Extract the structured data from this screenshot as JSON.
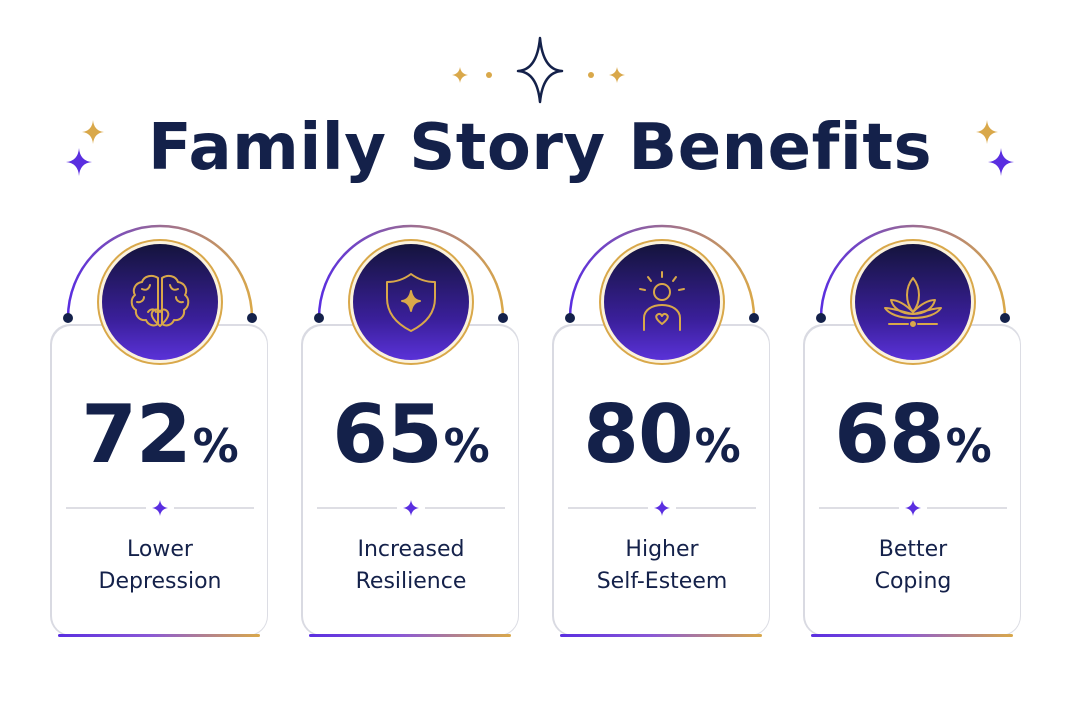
{
  "title": "Family Story Benefits",
  "colors": {
    "navy": "#14214a",
    "purple": "#5a2ee0",
    "gold": "#d9a84a"
  },
  "cards": [
    {
      "value": "72",
      "unit": "%",
      "label": "Lower\nDepression",
      "icon": "brain-heart-icon"
    },
    {
      "value": "65",
      "unit": "%",
      "label": "Increased\nResilience",
      "icon": "shield-star-icon"
    },
    {
      "value": "80",
      "unit": "%",
      "label": "Higher\nSelf-Esteem",
      "icon": "person-sun-heart-icon"
    },
    {
      "value": "68",
      "unit": "%",
      "label": "Better\nCoping",
      "icon": "lotus-icon"
    }
  ]
}
